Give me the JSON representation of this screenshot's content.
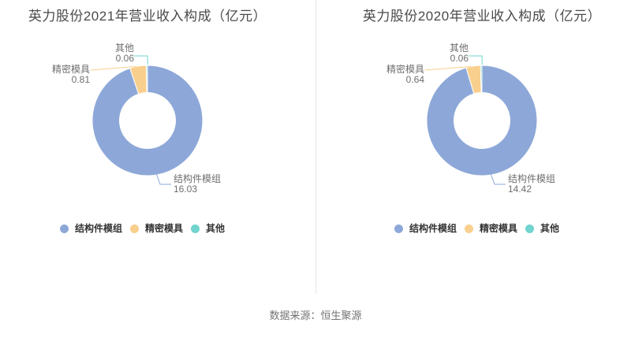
{
  "page": {
    "source_note": "数据来源：恒生聚源"
  },
  "legend": {
    "position": "bottom",
    "items": [
      {
        "label": "结构件模组",
        "color": "#8DA8D8"
      },
      {
        "label": "精密模具",
        "color": "#F9CF8D"
      },
      {
        "label": "其他",
        "color": "#71D4CE"
      }
    ]
  },
  "chart_data": [
    {
      "type": "pie",
      "subtype": "donut",
      "title": "英力股份2021年营业收入构成（亿元）",
      "unit": "亿元",
      "categories": [
        "结构件模组",
        "精密模具",
        "其他"
      ],
      "values": [
        16.03,
        0.81,
        0.06
      ],
      "colors": [
        "#8DA8D8",
        "#F9CF8D",
        "#71D4CE"
      ],
      "direction": "clockwise",
      "start_angle": "top",
      "legend_position": "bottom",
      "labels": [
        {
          "name": "结构件模组",
          "value": "16.03"
        },
        {
          "name": "精密模具",
          "value": "0.81"
        },
        {
          "name": "其他",
          "value": "0.06"
        }
      ]
    },
    {
      "type": "pie",
      "subtype": "donut",
      "title": "英力股份2020年营业收入构成（亿元）",
      "unit": "亿元",
      "categories": [
        "结构件模组",
        "精密模具",
        "其他"
      ],
      "values": [
        14.42,
        0.64,
        0.06
      ],
      "colors": [
        "#8DA8D8",
        "#F9CF8D",
        "#71D4CE"
      ],
      "direction": "clockwise",
      "start_angle": "top",
      "legend_position": "bottom",
      "labels": [
        {
          "name": "结构件模组",
          "value": "14.42"
        },
        {
          "name": "精密模具",
          "value": "0.64"
        },
        {
          "name": "其他",
          "value": "0.06"
        }
      ]
    }
  ]
}
